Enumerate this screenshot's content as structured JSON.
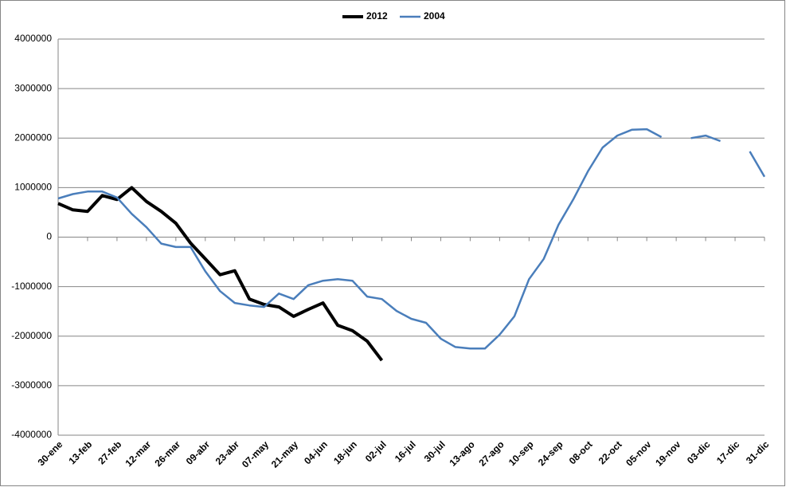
{
  "chart_data": {
    "type": "line",
    "categories": [
      "30-ene",
      null,
      "13-feb",
      null,
      "27-feb",
      null,
      "12-mar",
      null,
      "26-mar",
      null,
      "09-abr",
      null,
      "23-abr",
      null,
      "07-may",
      null,
      "21-may",
      null,
      "04-jun",
      null,
      "18-jun",
      null,
      "02-jul",
      null,
      "16-jul",
      null,
      "30-jul",
      null,
      "13-ago",
      null,
      "27-ago",
      null,
      "10-sep",
      null,
      "24-sep",
      null,
      "08-oct",
      null,
      "22-oct",
      null,
      "05-nov",
      null,
      "19-nov",
      null,
      "03-dic",
      null,
      "17-dic",
      null,
      "31-dic"
    ],
    "series": [
      {
        "name": "2012",
        "color": "#000000",
        "values": [
          680000,
          550000,
          520000,
          840000,
          760000,
          1000000,
          720000,
          520000,
          280000,
          -120000,
          -440000,
          -760000,
          -680000,
          -1250000,
          -1360000,
          -1410000,
          -1600000,
          -1460000,
          -1330000,
          -1780000,
          -1890000,
          -2100000,
          -2490000,
          null,
          null,
          null,
          null,
          null,
          null,
          null,
          null,
          null,
          null,
          null,
          null,
          null,
          null,
          null,
          null,
          null,
          null,
          null,
          null,
          null,
          null,
          null,
          null,
          null,
          null
        ]
      },
      {
        "name": "2004",
        "color": "#4a7ebb",
        "values": [
          780000,
          870000,
          920000,
          920000,
          800000,
          470000,
          200000,
          -130000,
          -200000,
          -200000,
          -690000,
          -1090000,
          -1330000,
          -1380000,
          -1410000,
          -1140000,
          -1250000,
          -970000,
          -880000,
          -850000,
          -880000,
          -1200000,
          -1250000,
          -1490000,
          -1650000,
          -1730000,
          -2050000,
          -2220000,
          -2250000,
          -2250000,
          -1970000,
          -1600000,
          -850000,
          -440000,
          250000,
          760000,
          1330000,
          1810000,
          2050000,
          2170000,
          2180000,
          2020000,
          null,
          2000000,
          2050000,
          1940000,
          null,
          1730000,
          1220000
        ]
      }
    ],
    "ylim": [
      -4000000,
      4000000
    ],
    "yticks": [
      -4000000,
      -3000000,
      -2000000,
      -1000000,
      0,
      1000000,
      2000000,
      3000000,
      4000000
    ],
    "grid": true,
    "legend": "top"
  }
}
